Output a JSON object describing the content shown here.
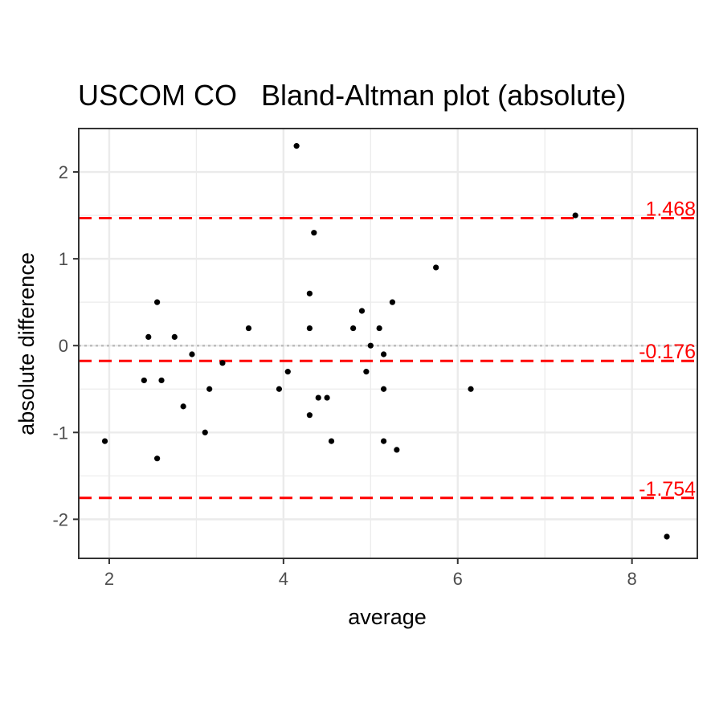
{
  "chart_data": {
    "type": "scatter",
    "title": "USCOM CO   Bland-Altman plot (absolute)",
    "xlabel": "average",
    "ylabel": "absolute difference",
    "xlim": [
      1.65,
      8.75
    ],
    "ylim": [
      -2.45,
      2.5
    ],
    "x_ticks": [
      2,
      4,
      6,
      8
    ],
    "x_tick_labels": [
      "2",
      "4",
      "6",
      "8"
    ],
    "y_ticks": [
      -2,
      -1,
      0,
      1,
      2
    ],
    "y_tick_labels": [
      "-2",
      "-1",
      "0",
      "1",
      "2"
    ],
    "grid": true,
    "reference_lines": [
      {
        "value": 1.468,
        "label": "1.468",
        "style": "dashed",
        "color": "#ff0000"
      },
      {
        "value": -0.176,
        "label": "-0.176",
        "style": "dashed",
        "color": "#ff0000"
      },
      {
        "value": -1.754,
        "label": "-1.754",
        "style": "dashed",
        "color": "#ff0000"
      }
    ],
    "zero_line": {
      "value": 0,
      "style": "dotted",
      "color": "#bdbdbd"
    },
    "points": [
      {
        "x": 1.95,
        "y": -1.1
      },
      {
        "x": 2.4,
        "y": -0.4
      },
      {
        "x": 2.45,
        "y": 0.1
      },
      {
        "x": 2.55,
        "y": 0.5
      },
      {
        "x": 2.55,
        "y": -1.3
      },
      {
        "x": 2.6,
        "y": -0.4
      },
      {
        "x": 2.75,
        "y": 0.1
      },
      {
        "x": 2.85,
        "y": -0.7
      },
      {
        "x": 2.95,
        "y": -0.1
      },
      {
        "x": 3.1,
        "y": -1.0
      },
      {
        "x": 3.15,
        "y": -0.5
      },
      {
        "x": 3.3,
        "y": -0.2
      },
      {
        "x": 3.6,
        "y": 0.2
      },
      {
        "x": 3.95,
        "y": -0.5
      },
      {
        "x": 4.05,
        "y": -0.3
      },
      {
        "x": 4.15,
        "y": 2.3
      },
      {
        "x": 4.3,
        "y": 0.6
      },
      {
        "x": 4.3,
        "y": 0.2
      },
      {
        "x": 4.3,
        "y": -0.8
      },
      {
        "x": 4.35,
        "y": 1.3
      },
      {
        "x": 4.4,
        "y": -0.6
      },
      {
        "x": 4.5,
        "y": -0.6
      },
      {
        "x": 4.55,
        "y": -1.1
      },
      {
        "x": 4.8,
        "y": 0.2
      },
      {
        "x": 4.9,
        "y": 0.4
      },
      {
        "x": 4.95,
        "y": -0.3
      },
      {
        "x": 5.0,
        "y": 0.0
      },
      {
        "x": 5.1,
        "y": 0.2
      },
      {
        "x": 5.15,
        "y": -0.1
      },
      {
        "x": 5.15,
        "y": -0.5
      },
      {
        "x": 5.15,
        "y": -1.1
      },
      {
        "x": 5.25,
        "y": 0.5
      },
      {
        "x": 5.3,
        "y": -1.2
      },
      {
        "x": 5.75,
        "y": 0.9
      },
      {
        "x": 6.15,
        "y": -0.5
      },
      {
        "x": 7.35,
        "y": 1.5
      },
      {
        "x": 8.4,
        "y": -2.2
      }
    ]
  }
}
